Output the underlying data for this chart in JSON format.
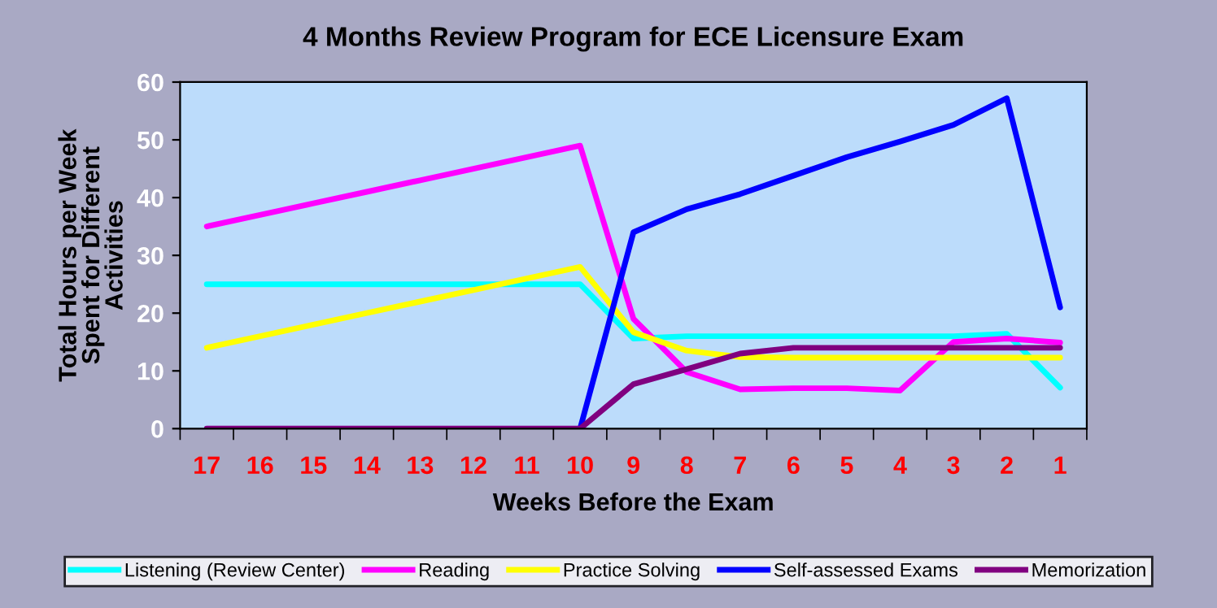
{
  "chart_data": {
    "type": "line",
    "title": "4 Months Review Program for ECE Licensure Exam",
    "xlabel": "Weeks Before the Exam",
    "ylabel": "Total Hours per Week\nSpent for Different\nActivities",
    "categories": [
      "17",
      "16",
      "15",
      "14",
      "13",
      "12",
      "11",
      "10",
      "9",
      "8",
      "7",
      "6",
      "5",
      "4",
      "3",
      "2",
      "1"
    ],
    "series": [
      {
        "name": "Listening (Review Center)",
        "color": "#00ffff",
        "values": [
          25,
          25,
          25,
          25,
          25,
          25,
          25,
          25,
          15.6,
          16,
          16,
          16,
          16,
          16,
          16,
          16.4,
          7.1
        ]
      },
      {
        "name": "Reading",
        "color": "#ff00ff",
        "values": [
          35,
          37,
          39,
          41,
          43,
          45,
          47,
          49,
          19,
          9.8,
          6.8,
          7,
          7,
          6.6,
          15,
          15.6,
          14.9
        ]
      },
      {
        "name": "Practice Solving",
        "color": "#ffff00",
        "values": [
          14,
          16,
          18,
          20,
          22,
          24,
          26,
          28,
          16.7,
          13.5,
          12.4,
          12.3,
          12.3,
          12.3,
          12.3,
          12.3,
          12.3
        ]
      },
      {
        "name": "Self-assessed Exams",
        "color": "#0000ff",
        "values": [
          null,
          null,
          null,
          null,
          null,
          null,
          null,
          0,
          34,
          38,
          40.6,
          43.8,
          47,
          49.7,
          52.6,
          57.2,
          21
        ]
      },
      {
        "name": "Memorization",
        "color": "#800080",
        "values": [
          0,
          0,
          0,
          0,
          0,
          0,
          0,
          0,
          7.7,
          10.3,
          13,
          14,
          14,
          14,
          14,
          14,
          14
        ]
      }
    ],
    "ylim": [
      0,
      60
    ],
    "yticks": [
      0,
      10,
      20,
      30,
      40,
      50,
      60
    ],
    "grid": false,
    "legend": "bottom",
    "marker": "none",
    "line_style": "solid"
  }
}
